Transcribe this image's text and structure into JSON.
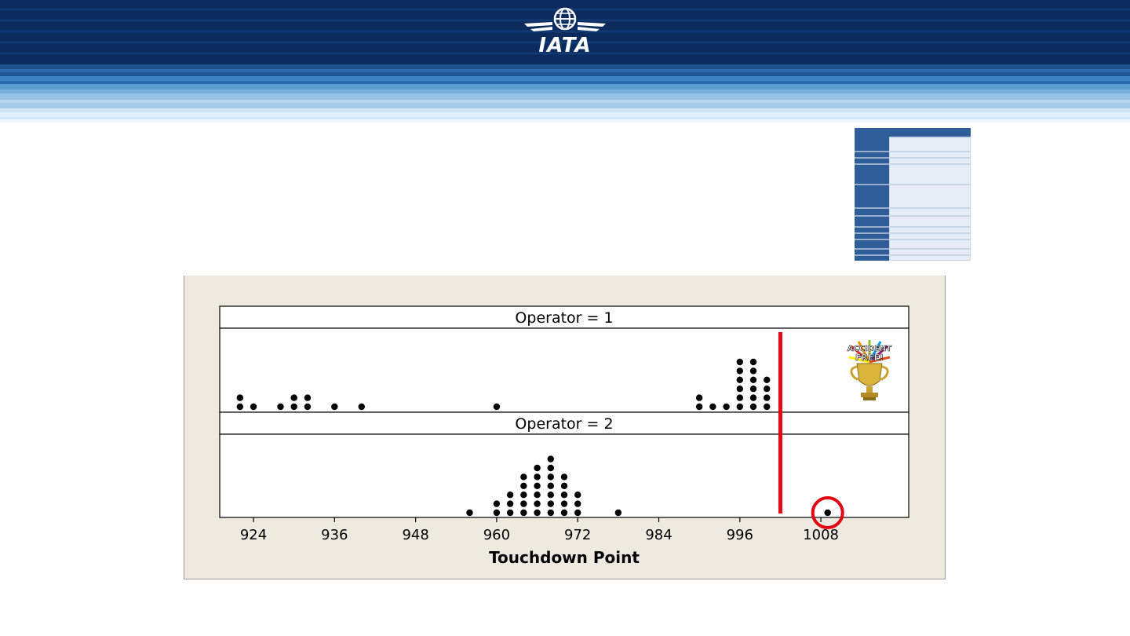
{
  "brand": {
    "logo_text": "IATA",
    "logo_icon": "globe-wings-icon",
    "banner_colors": [
      "#0a2a5c",
      "#163f7a",
      "#2a6fae",
      "#8ec1e3",
      "#d9ebf6"
    ]
  },
  "thumbnail": {
    "icon": "spi-candidate-table-thumbnail"
  },
  "chart_data": {
    "type": "dotplot",
    "xlabel": "Touchdown Point",
    "xticks": [
      924,
      936,
      948,
      960,
      972,
      984,
      996,
      1008
    ],
    "xlim": [
      919,
      1021
    ],
    "panels": [
      {
        "label": "Operator = 1",
        "points": [
          {
            "x": 922,
            "count": 2
          },
          {
            "x": 924,
            "count": 1
          },
          {
            "x": 928,
            "count": 1
          },
          {
            "x": 930,
            "count": 2
          },
          {
            "x": 932,
            "count": 2
          },
          {
            "x": 936,
            "count": 1
          },
          {
            "x": 940,
            "count": 1
          },
          {
            "x": 960,
            "count": 1
          },
          {
            "x": 990,
            "count": 2
          },
          {
            "x": 992,
            "count": 1
          },
          {
            "x": 994,
            "count": 1
          },
          {
            "x": 996,
            "count": 6
          },
          {
            "x": 998,
            "count": 6
          },
          {
            "x": 1000,
            "count": 4
          }
        ]
      },
      {
        "label": "Operator = 2",
        "points": [
          {
            "x": 956,
            "count": 1
          },
          {
            "x": 960,
            "count": 2
          },
          {
            "x": 962,
            "count": 3
          },
          {
            "x": 964,
            "count": 5
          },
          {
            "x": 966,
            "count": 6
          },
          {
            "x": 968,
            "count": 7
          },
          {
            "x": 970,
            "count": 5
          },
          {
            "x": 972,
            "count": 3
          },
          {
            "x": 978,
            "count": 1
          },
          {
            "x": 1009,
            "count": 1
          }
        ]
      }
    ],
    "threshold_x": 1002,
    "threshold_color": "#e30613",
    "highlight": {
      "x": 1009,
      "panel": 2,
      "color": "#e30613"
    },
    "badge": {
      "text": [
        "ACCIDENT",
        "FREE!"
      ],
      "icon": "trophy-icon"
    },
    "colors": {
      "panel_bg": "#efeae0",
      "dots": "#000000"
    }
  }
}
